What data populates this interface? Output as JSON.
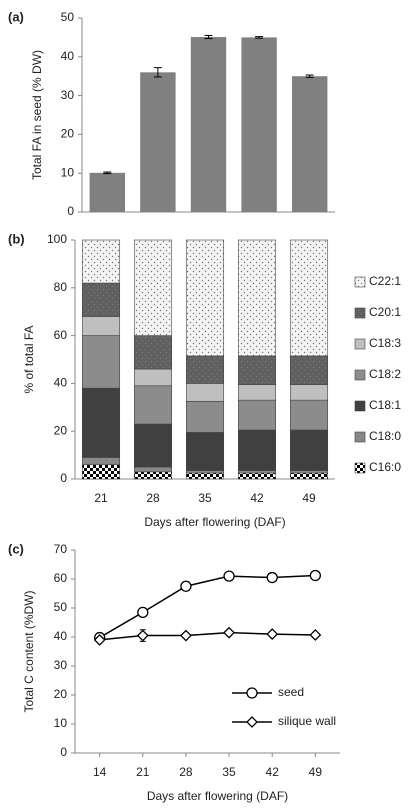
{
  "chart_data": [
    {
      "type": "bar",
      "label": "(a)",
      "ylabel": "Total FA in seed (% DW)",
      "categories": [
        null,
        null,
        null,
        null,
        null
      ],
      "values": [
        10.1,
        36,
        45.1,
        45,
        35
      ],
      "errors": [
        0.2,
        1.2,
        0.4,
        0.2,
        0.3
      ],
      "color": "#808080",
      "ylim": [
        0,
        50
      ],
      "yticks": [
        0,
        10,
        20,
        30,
        40,
        50
      ]
    },
    {
      "type": "stacked_bar",
      "label": "(b)",
      "ylabel": "% of total FA",
      "xlabel": "Days after flowering (DAF)",
      "categories": [
        "21",
        "28",
        "35",
        "42",
        "49"
      ],
      "series": [
        {
          "name": "C16:0",
          "color": "#ffffff",
          "pattern": "checker",
          "values": [
            6,
            3,
            2.5,
            2.5,
            2.5
          ]
        },
        {
          "name": "C18:0",
          "color": "#8a8a8a",
          "pattern": "dots",
          "values": [
            3,
            2,
            1,
            1,
            1
          ]
        },
        {
          "name": "C18:1",
          "color": "#404040",
          "values": [
            29,
            18,
            16,
            17,
            17
          ]
        },
        {
          "name": "C18:2",
          "color": "#8c8c8c",
          "values": [
            22,
            16,
            13,
            12.5,
            12.5
          ]
        },
        {
          "name": "C18:3",
          "color": "#bfbfbf",
          "values": [
            8,
            7,
            7.5,
            6.5,
            6.5
          ]
        },
        {
          "name": "C20:1",
          "color": "#606060",
          "pattern": "dots",
          "values": [
            14,
            14,
            11.5,
            12,
            12
          ]
        },
        {
          "name": "C22:1",
          "color": "#f4f4f4",
          "pattern": "dots",
          "values": [
            18,
            40,
            48.5,
            48.5,
            48.5
          ]
        }
      ],
      "ylim": [
        0,
        100
      ],
      "yticks": [
        0,
        20,
        40,
        60,
        80,
        100
      ]
    },
    {
      "type": "line",
      "label": "(c)",
      "ylabel": "Total C content (%DW)",
      "xlabel": "Days after flowering (DAF)",
      "x": [
        14,
        21,
        28,
        35,
        42,
        49
      ],
      "series": [
        {
          "name": "seed",
          "color": "#000000",
          "marker": "circle",
          "values": [
            39.8,
            48.5,
            57.5,
            61,
            60.5,
            61.2
          ],
          "errors": [
            null,
            null,
            null,
            null,
            null,
            null
          ]
        },
        {
          "name": "silique wall",
          "color": "#000000",
          "marker": "diamond",
          "values": [
            39,
            40.5,
            40.5,
            41.5,
            41,
            40.7
          ],
          "errors": [
            null,
            2,
            null,
            null,
            null,
            null
          ]
        }
      ],
      "xlim": [
        10,
        53
      ],
      "xticks": [
        14,
        21,
        28,
        35,
        42,
        49
      ],
      "ylim": [
        0,
        70
      ],
      "yticks": [
        0,
        10,
        20,
        30,
        40,
        50,
        60,
        70
      ]
    }
  ]
}
